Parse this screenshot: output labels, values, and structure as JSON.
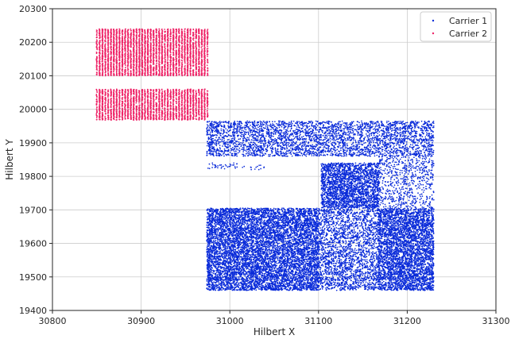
{
  "chart_data": {
    "type": "scatter",
    "xlabel": "Hilbert X",
    "ylabel": "Hilbert Y",
    "xlim": [
      30800,
      31300
    ],
    "ylim": [
      19400,
      20300
    ],
    "xticks": [
      30800,
      30900,
      31000,
      31100,
      31200,
      31300
    ],
    "yticks": [
      19400,
      19500,
      19600,
      19700,
      19800,
      19900,
      20000,
      20100,
      20200,
      20300
    ],
    "xtick_labels": [
      "30800",
      "30900",
      "31000",
      "31100",
      "31200",
      "31300"
    ],
    "ytick_labels": [
      "19400",
      "19500",
      "19600",
      "19700",
      "19800",
      "19900",
      "20000",
      "20100",
      "20200",
      "20300"
    ],
    "grid": true,
    "legend_position": "top-right",
    "series": [
      {
        "name": "Carrier 1",
        "color": "#0a2bd9",
        "regions": [
          {
            "x": [
              30974,
              31101
            ],
            "y": [
              19460,
              19705
            ],
            "density": "high"
          },
          {
            "x": [
              31167,
              31230
            ],
            "y": [
              19460,
              19705
            ],
            "density": "high"
          },
          {
            "x": [
              31101,
              31167
            ],
            "y": [
              19460,
              19705
            ],
            "density": "medium"
          },
          {
            "x": [
              30974,
              31230
            ],
            "y": [
              19860,
              19965
            ],
            "density": "medium"
          },
          {
            "x": [
              31103,
              31168
            ],
            "y": [
              19705,
              19840
            ],
            "density": "high"
          },
          {
            "x": [
              31168,
              31230
            ],
            "y": [
              19705,
              19860
            ],
            "density": "low"
          },
          {
            "x": [
              30974,
              31040
            ],
            "y": [
              19820,
              19840
            ],
            "density": "sparse"
          }
        ]
      },
      {
        "name": "Carrier 2",
        "color": "#ee2266",
        "regions": [
          {
            "x": [
              30850,
              30975
            ],
            "y": [
              20100,
              20240
            ],
            "density": "high"
          },
          {
            "x": [
              30850,
              30975
            ],
            "y": [
              19968,
              20060
            ],
            "density": "high"
          }
        ]
      }
    ]
  }
}
